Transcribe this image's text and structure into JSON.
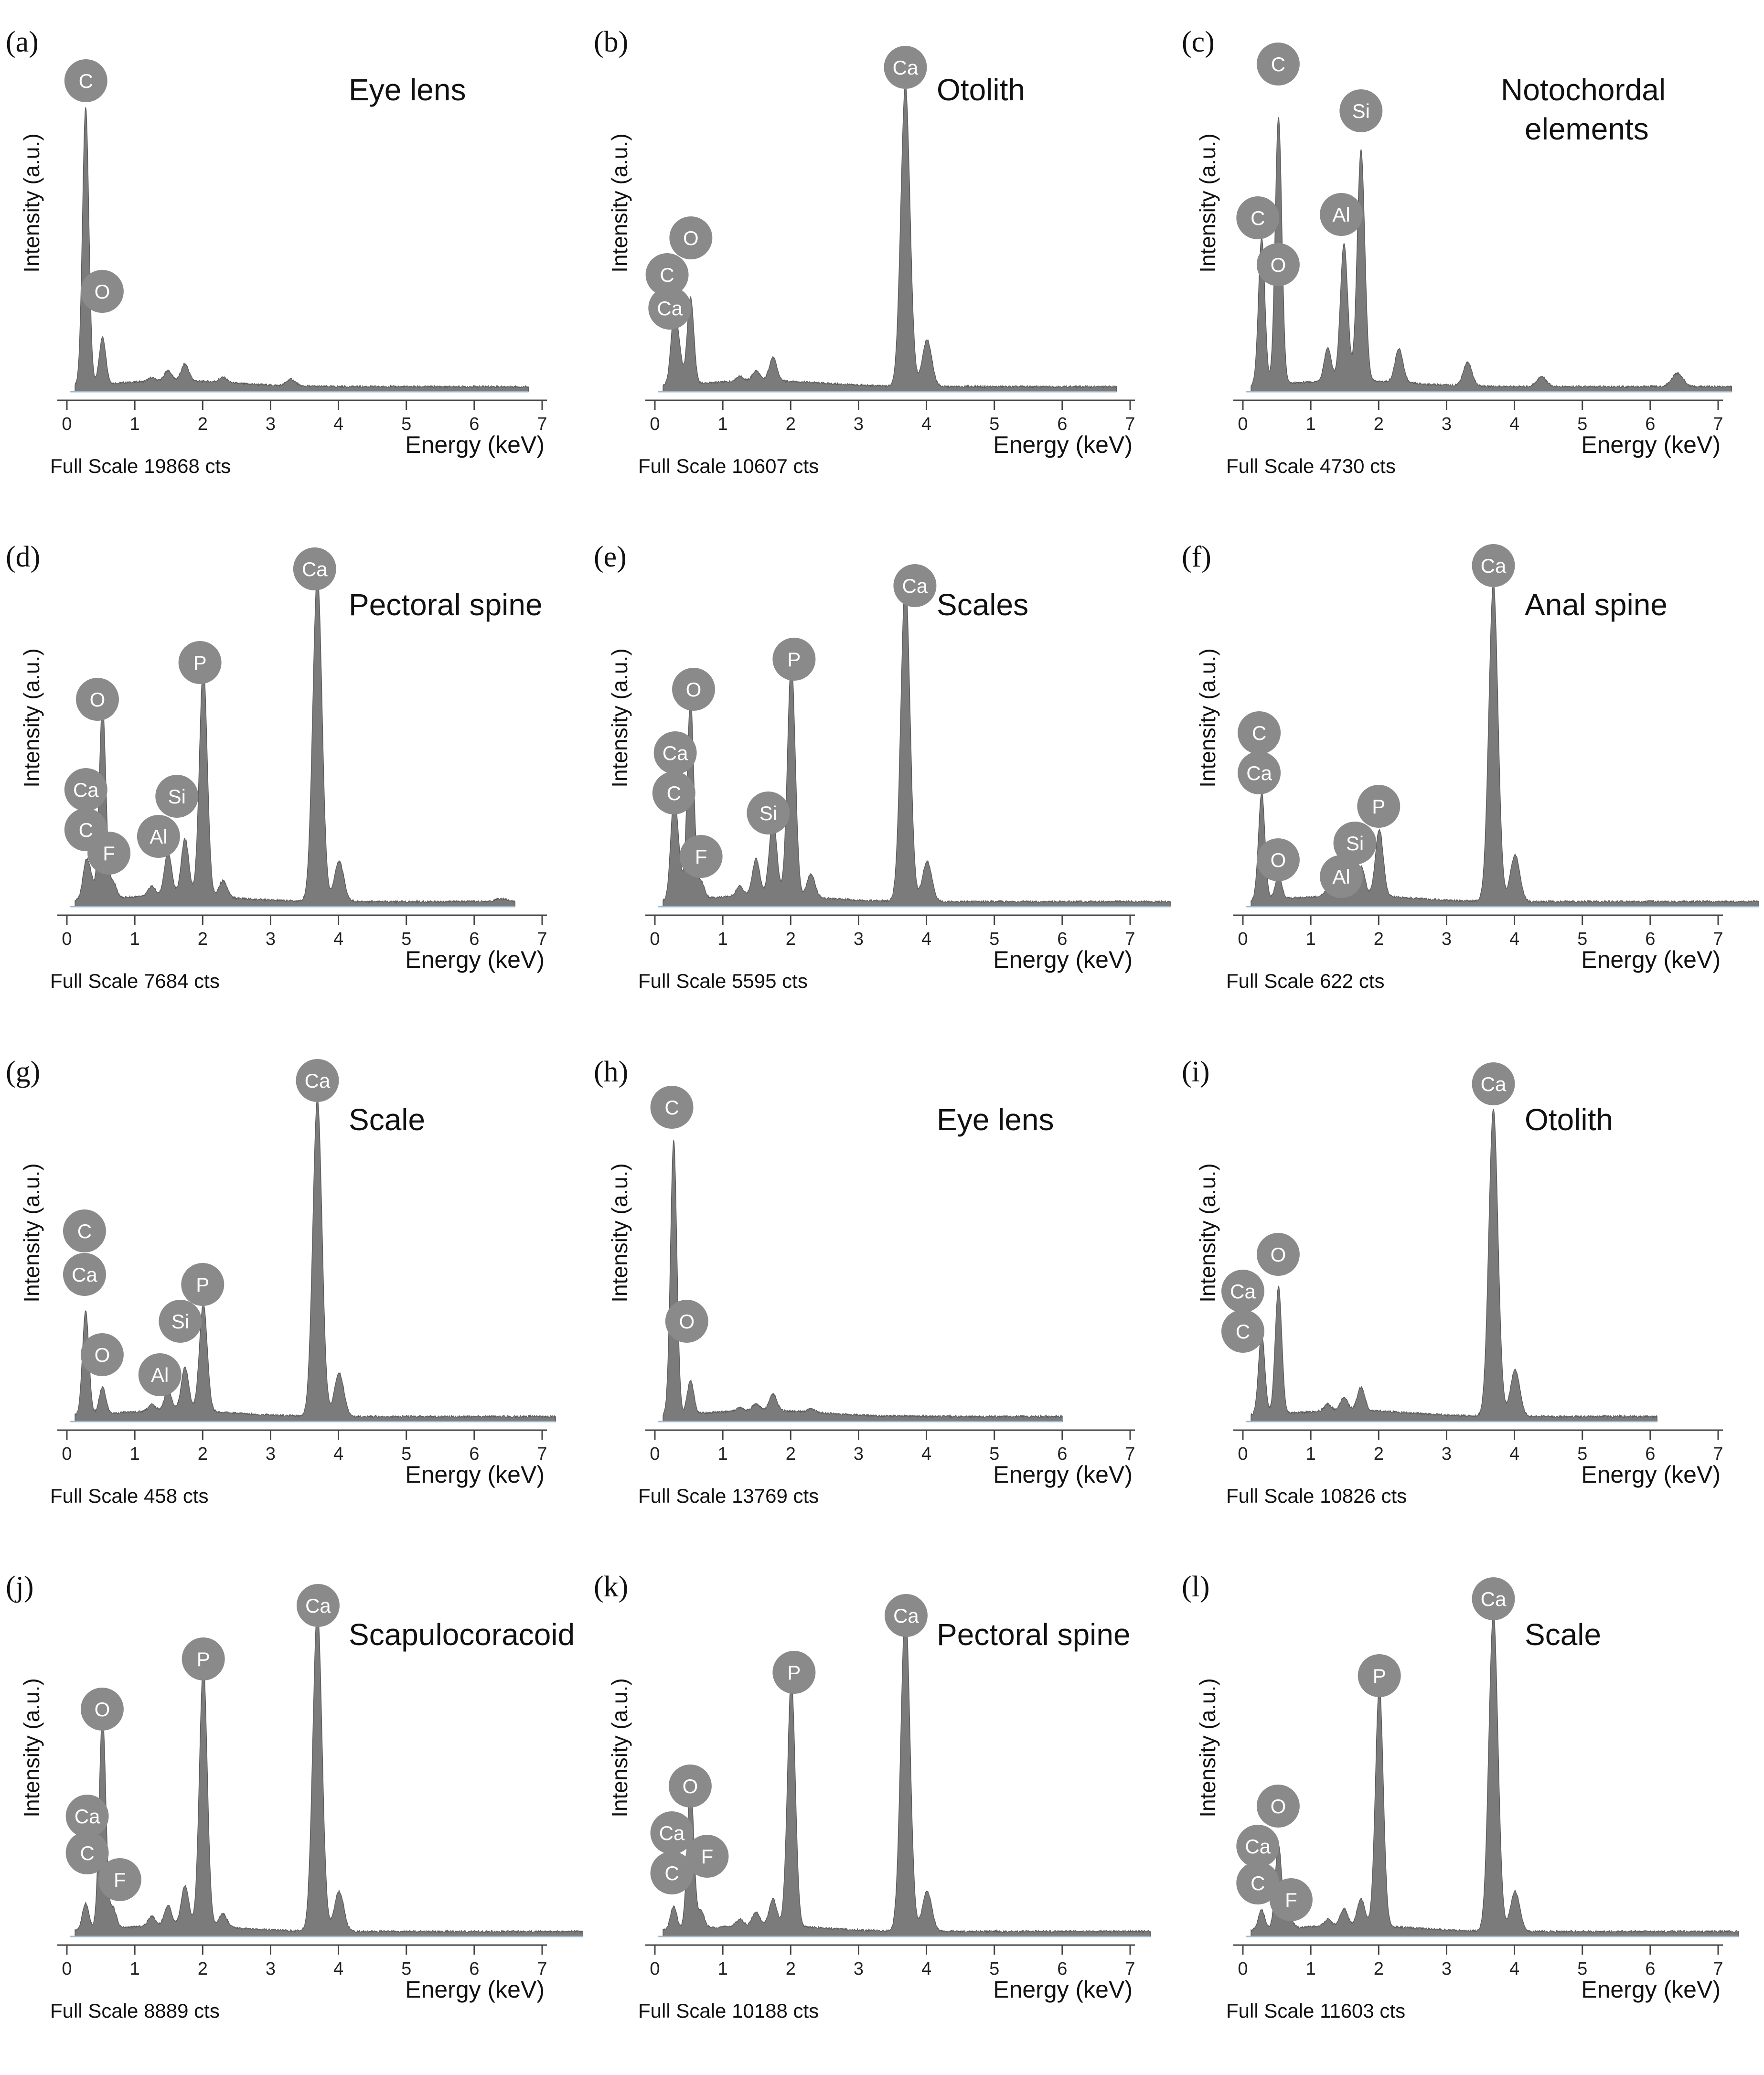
{
  "figure": {
    "xlabel": "Energy (keV)",
    "ylabel": "Intensity (a.u.)",
    "xticks": [
      "0",
      "1",
      "2",
      "3",
      "4",
      "5",
      "6",
      "7"
    ],
    "colors": {
      "spectrum": "#7b7b7b",
      "edge": "#5c5c5c",
      "baseline": "#9fb8cc",
      "marker": "#8a8a8a",
      "marker_text": "#ffffff",
      "text": "#111111"
    }
  },
  "chart_data": [
    {
      "type": "area",
      "letter": "(a)",
      "title": "Eye lens",
      "full_scale": "Full Scale 19868 cts",
      "xlabel": "Energy (keV)",
      "ylabel": "Intensity (a.u.)",
      "xlim": [
        0,
        7
      ],
      "xmax_data": 6.8,
      "peaks": [
        [
          0.277,
          0.83
        ],
        [
          0.525,
          0.14
        ],
        [
          1.25,
          0.01
        ],
        [
          1.49,
          0.03
        ],
        [
          1.74,
          0.05
        ],
        [
          2.3,
          0.015
        ],
        [
          3.3,
          0.02
        ]
      ],
      "markers": [
        {
          "label": "C",
          "x": 0.28,
          "y": 0.93
        },
        {
          "label": "O",
          "x": 0.52,
          "y": 0.3
        }
      ]
    },
    {
      "type": "area",
      "letter": "(b)",
      "title": "Otolith",
      "full_scale": "Full Scale 10607 cts",
      "xlabel": "Energy (keV)",
      "ylabel": "Intensity (a.u.)",
      "xlim": [
        0,
        7
      ],
      "xmax_data": 6.8,
      "peaks": [
        [
          0.277,
          0.18
        ],
        [
          0.35,
          0.1
        ],
        [
          0.525,
          0.26
        ],
        [
          1.25,
          0.015
        ],
        [
          1.49,
          0.03
        ],
        [
          1.74,
          0.07
        ],
        [
          3.69,
          0.9
        ],
        [
          4.01,
          0.14
        ]
      ],
      "markers": [
        {
          "label": "Ca",
          "x": 3.69,
          "y": 0.97
        },
        {
          "label": "O",
          "x": 0.53,
          "y": 0.46
        },
        {
          "label": "C",
          "x": 0.18,
          "y": 0.35
        },
        {
          "label": "Ca",
          "x": 0.22,
          "y": 0.25
        }
      ]
    },
    {
      "type": "area",
      "letter": "(c)",
      "title": "Notochordal elements",
      "full_scale": "Full Scale 4730 cts",
      "xlabel": "Energy (keV)",
      "ylabel": "Intensity (a.u.)",
      "xlim": [
        0,
        7
      ],
      "xmax_data": 7.2,
      "peaks": [
        [
          0.277,
          0.44
        ],
        [
          0.525,
          0.8
        ],
        [
          1.25,
          0.1
        ],
        [
          1.49,
          0.41
        ],
        [
          1.74,
          0.69
        ],
        [
          2.3,
          0.1
        ],
        [
          3.31,
          0.07
        ],
        [
          4.4,
          0.03
        ],
        [
          6.4,
          0.04
        ]
      ],
      "markers": [
        {
          "label": "C",
          "x": 0.52,
          "y": 0.98
        },
        {
          "label": "Si",
          "x": 1.74,
          "y": 0.84
        },
        {
          "label": "C",
          "x": 0.22,
          "y": 0.52
        },
        {
          "label": "Al",
          "x": 1.45,
          "y": 0.53
        },
        {
          "label": "O",
          "x": 0.52,
          "y": 0.38
        }
      ]
    },
    {
      "type": "area",
      "letter": "(d)",
      "title": "Pectoral spine",
      "full_scale": "Full Scale 7684 cts",
      "xlabel": "Energy (keV)",
      "ylabel": "Intensity (a.u.)",
      "xlim": [
        0,
        7
      ],
      "xmax_data": 6.6,
      "peaks": [
        [
          0.277,
          0.1
        ],
        [
          0.35,
          0.06
        ],
        [
          0.525,
          0.58
        ],
        [
          0.68,
          0.05
        ],
        [
          1.25,
          0.03
        ],
        [
          1.49,
          0.13
        ],
        [
          1.74,
          0.17
        ],
        [
          2.01,
          0.69
        ],
        [
          2.3,
          0.05
        ],
        [
          3.69,
          0.98
        ],
        [
          4.01,
          0.12
        ],
        [
          6.4,
          0.01
        ]
      ],
      "markers": [
        {
          "label": "Ca",
          "x": 3.65,
          "y": 1.01
        },
        {
          "label": "P",
          "x": 1.96,
          "y": 0.73
        },
        {
          "label": "O",
          "x": 0.45,
          "y": 0.62
        },
        {
          "label": "Ca",
          "x": 0.28,
          "y": 0.35
        },
        {
          "label": "Si",
          "x": 1.62,
          "y": 0.33
        },
        {
          "label": "C",
          "x": 0.28,
          "y": 0.23
        },
        {
          "label": "Al",
          "x": 1.35,
          "y": 0.21
        },
        {
          "label": "F",
          "x": 0.62,
          "y": 0.16
        }
      ]
    },
    {
      "type": "area",
      "letter": "(e)",
      "title": "Scales",
      "full_scale": "Full Scale 5595 cts",
      "xlabel": "Energy (keV)",
      "ylabel": "Intensity (a.u.)",
      "xlim": [
        0,
        7
      ],
      "xmax_data": 7.6,
      "peaks": [
        [
          0.277,
          0.28
        ],
        [
          0.35,
          0.1
        ],
        [
          0.525,
          0.6
        ],
        [
          0.68,
          0.05
        ],
        [
          1.25,
          0.03
        ],
        [
          1.49,
          0.11
        ],
        [
          1.74,
          0.23
        ],
        [
          2.01,
          0.7
        ],
        [
          2.3,
          0.07
        ],
        [
          3.69,
          0.96
        ],
        [
          4.01,
          0.12
        ]
      ],
      "markers": [
        {
          "label": "Ca",
          "x": 3.83,
          "y": 0.96
        },
        {
          "label": "P",
          "x": 2.05,
          "y": 0.74
        },
        {
          "label": "O",
          "x": 0.57,
          "y": 0.65
        },
        {
          "label": "Ca",
          "x": 0.3,
          "y": 0.46
        },
        {
          "label": "C",
          "x": 0.28,
          "y": 0.34
        },
        {
          "label": "Si",
          "x": 1.67,
          "y": 0.28
        },
        {
          "label": "F",
          "x": 0.68,
          "y": 0.15
        }
      ]
    },
    {
      "type": "area",
      "letter": "(f)",
      "title": "Anal spine",
      "full_scale": "Full Scale 622 cts",
      "xlabel": "Energy (keV)",
      "ylabel": "Intensity (a.u.)",
      "xlim": [
        0,
        7
      ],
      "xmax_data": 7.6,
      "peaks": [
        [
          0.277,
          0.32
        ],
        [
          0.525,
          0.07
        ],
        [
          1.25,
          0.02
        ],
        [
          1.49,
          0.06
        ],
        [
          1.74,
          0.09
        ],
        [
          2.01,
          0.2
        ],
        [
          3.69,
          0.95
        ],
        [
          4.01,
          0.14
        ]
      ],
      "markers": [
        {
          "label": "Ca",
          "x": 3.69,
          "y": 1.02
        },
        {
          "label": "C",
          "x": 0.24,
          "y": 0.52
        },
        {
          "label": "Ca",
          "x": 0.24,
          "y": 0.4
        },
        {
          "label": "P",
          "x": 2.0,
          "y": 0.3
        },
        {
          "label": "Si",
          "x": 1.65,
          "y": 0.19
        },
        {
          "label": "O",
          "x": 0.52,
          "y": 0.14
        },
        {
          "label": "Al",
          "x": 1.45,
          "y": 0.09
        }
      ]
    },
    {
      "type": "area",
      "letter": "(g)",
      "title": "Scale",
      "full_scale": "Full Scale 458 cts",
      "xlabel": "Energy (keV)",
      "ylabel": "Intensity (a.u.)",
      "xlim": [
        0,
        7
      ],
      "xmax_data": 7.2,
      "peaks": [
        [
          0.277,
          0.31
        ],
        [
          0.525,
          0.08
        ],
        [
          1.25,
          0.02
        ],
        [
          1.49,
          0.06
        ],
        [
          1.74,
          0.13
        ],
        [
          2.01,
          0.32
        ],
        [
          3.69,
          0.95
        ],
        [
          4.01,
          0.13
        ]
      ],
      "markers": [
        {
          "label": "Ca",
          "x": 3.69,
          "y": 1.02
        },
        {
          "label": "C",
          "x": 0.26,
          "y": 0.57
        },
        {
          "label": "Ca",
          "x": 0.26,
          "y": 0.44
        },
        {
          "label": "P",
          "x": 2.0,
          "y": 0.41
        },
        {
          "label": "Si",
          "x": 1.67,
          "y": 0.3
        },
        {
          "label": "O",
          "x": 0.52,
          "y": 0.2
        },
        {
          "label": "Al",
          "x": 1.37,
          "y": 0.14
        }
      ]
    },
    {
      "type": "area",
      "letter": "(h)",
      "title": "Eye lens",
      "full_scale": "Full Scale 13769 cts",
      "xlabel": "Energy (keV)",
      "ylabel": "Intensity (a.u.)",
      "xlim": [
        0,
        7
      ],
      "xmax_data": 6.0,
      "peaks": [
        [
          0.277,
          0.82
        ],
        [
          0.525,
          0.1
        ],
        [
          1.25,
          0.01
        ],
        [
          1.49,
          0.02
        ],
        [
          1.74,
          0.05
        ],
        [
          2.3,
          0.01
        ]
      ],
      "markers": [
        {
          "label": "C",
          "x": 0.25,
          "y": 0.94
        },
        {
          "label": "O",
          "x": 0.47,
          "y": 0.3
        }
      ]
    },
    {
      "type": "area",
      "letter": "(i)",
      "title": "Otolith",
      "full_scale": "Full Scale 10826 cts",
      "xlabel": "Energy (keV)",
      "ylabel": "Intensity (a.u.)",
      "xlim": [
        0,
        7
      ],
      "xmax_data": 6.1,
      "peaks": [
        [
          0.277,
          0.24
        ],
        [
          0.525,
          0.38
        ],
        [
          1.25,
          0.02
        ],
        [
          1.49,
          0.04
        ],
        [
          1.74,
          0.07
        ],
        [
          3.69,
          0.92
        ],
        [
          4.01,
          0.14
        ]
      ],
      "markers": [
        {
          "label": "Ca",
          "x": 3.69,
          "y": 1.01
        },
        {
          "label": "O",
          "x": 0.52,
          "y": 0.5
        },
        {
          "label": "Ca",
          "x": 0.0,
          "y": 0.39
        },
        {
          "label": "C",
          "x": 0.0,
          "y": 0.27
        }
      ]
    },
    {
      "type": "area",
      "letter": "(j)",
      "title": "Scapulocoracoid",
      "full_scale": "Full Scale 8889 cts",
      "xlabel": "Energy (keV)",
      "ylabel": "Intensity (a.u.)",
      "xlim": [
        0,
        7
      ],
      "xmax_data": 7.6,
      "peaks": [
        [
          0.277,
          0.08
        ],
        [
          0.525,
          0.64
        ],
        [
          0.68,
          0.06
        ],
        [
          1.25,
          0.03
        ],
        [
          1.49,
          0.06
        ],
        [
          1.74,
          0.12
        ],
        [
          2.01,
          0.78
        ],
        [
          2.3,
          0.04
        ],
        [
          3.69,
          0.96
        ],
        [
          4.01,
          0.12
        ]
      ],
      "markers": [
        {
          "label": "Ca",
          "x": 3.7,
          "y": 0.99
        },
        {
          "label": "P",
          "x": 2.01,
          "y": 0.83
        },
        {
          "label": "O",
          "x": 0.52,
          "y": 0.68
        },
        {
          "label": "Ca",
          "x": 0.3,
          "y": 0.36
        },
        {
          "label": "C",
          "x": 0.3,
          "y": 0.25
        },
        {
          "label": "F",
          "x": 0.78,
          "y": 0.17
        }
      ]
    },
    {
      "type": "area",
      "letter": "(k)",
      "title": "Pectoral spine",
      "full_scale": "Full Scale 10188 cts",
      "xlabel": "Energy (keV)",
      "ylabel": "Intensity (a.u.)",
      "xlim": [
        0,
        7
      ],
      "xmax_data": 7.3,
      "peaks": [
        [
          0.277,
          0.07
        ],
        [
          0.525,
          0.44
        ],
        [
          0.68,
          0.05
        ],
        [
          1.25,
          0.02
        ],
        [
          1.49,
          0.04
        ],
        [
          1.74,
          0.08
        ],
        [
          2.01,
          0.74
        ],
        [
          3.69,
          0.97
        ],
        [
          4.01,
          0.12
        ]
      ],
      "markers": [
        {
          "label": "Ca",
          "x": 3.7,
          "y": 0.96
        },
        {
          "label": "P",
          "x": 2.05,
          "y": 0.79
        },
        {
          "label": "O",
          "x": 0.52,
          "y": 0.45
        },
        {
          "label": "Ca",
          "x": 0.25,
          "y": 0.31
        },
        {
          "label": "F",
          "x": 0.77,
          "y": 0.24
        },
        {
          "label": "C",
          "x": 0.25,
          "y": 0.19
        }
      ]
    },
    {
      "type": "area",
      "letter": "(l)",
      "title": "Scale",
      "full_scale": "Full Scale 11603 cts",
      "xlabel": "Energy (keV)",
      "ylabel": "Intensity (a.u.)",
      "xlim": [
        0,
        7
      ],
      "xmax_data": 7.3,
      "peaks": [
        [
          0.277,
          0.06
        ],
        [
          0.525,
          0.25
        ],
        [
          0.68,
          0.04
        ],
        [
          1.25,
          0.02
        ],
        [
          1.49,
          0.05
        ],
        [
          1.74,
          0.08
        ],
        [
          2.01,
          0.72
        ],
        [
          3.69,
          0.95
        ],
        [
          4.01,
          0.12
        ]
      ],
      "markers": [
        {
          "label": "Ca",
          "x": 3.69,
          "y": 1.01
        },
        {
          "label": "P",
          "x": 2.01,
          "y": 0.78
        },
        {
          "label": "O",
          "x": 0.52,
          "y": 0.39
        },
        {
          "label": "Ca",
          "x": 0.22,
          "y": 0.27
        },
        {
          "label": "C",
          "x": 0.22,
          "y": 0.16
        },
        {
          "label": "F",
          "x": 0.71,
          "y": 0.11
        }
      ]
    }
  ]
}
